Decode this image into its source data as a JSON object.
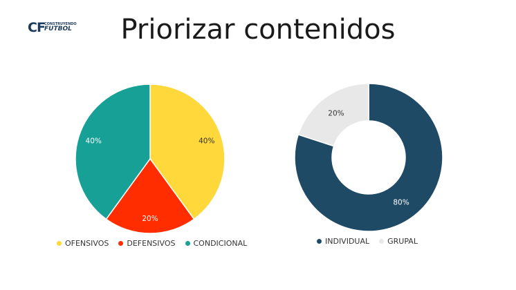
{
  "slide": {
    "title": "Priorizar contenidos"
  },
  "logo": {
    "mark_left": "CF",
    "mark_right": "",
    "top_text": "CONSTRUYENDO",
    "bottom_text": "FUTBOL"
  },
  "colors": {
    "ofensivos": "#FFD93B",
    "defensivos": "#FF2D00",
    "condicional": "#17A096",
    "individual": "#1F4A66",
    "grupal": "#E8E8E8"
  },
  "chart_data": [
    {
      "type": "pie",
      "categories": [
        "OFENSIVOS",
        "DEFENSIVOS",
        "CONDICIONAL"
      ],
      "values": [
        40,
        20,
        40
      ],
      "labels": [
        "40%",
        "20%",
        "40%"
      ],
      "colors": [
        "#FFD93B",
        "#FF2D00",
        "#17A096"
      ],
      "legend": "bottom"
    },
    {
      "type": "donut",
      "categories": [
        "INDIVIDUAL",
        "GRUPAL"
      ],
      "values": [
        80,
        20
      ],
      "labels": [
        "80%",
        "20%"
      ],
      "colors": [
        "#1F4A66",
        "#E8E8E8"
      ],
      "legend": "bottom"
    }
  ]
}
